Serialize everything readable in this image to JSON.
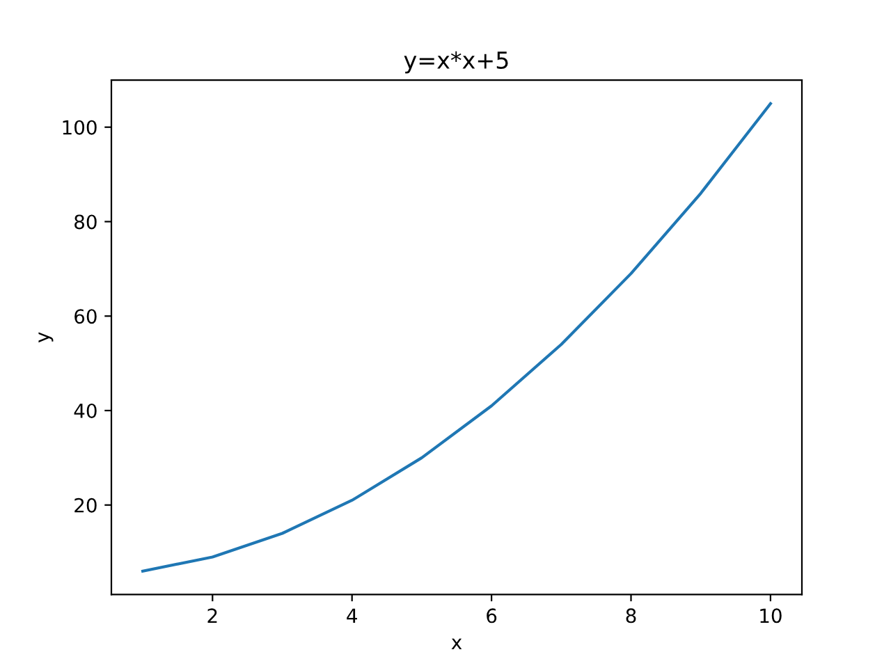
{
  "chart_data": {
    "type": "line",
    "title": "y=x*x+5",
    "xlabel": "x",
    "ylabel": "y",
    "x": [
      1,
      2,
      3,
      4,
      5,
      6,
      7,
      8,
      9,
      10
    ],
    "series": [
      {
        "color": "#1f77b4",
        "values": [
          6,
          9,
          14,
          21,
          30,
          41,
          54,
          69,
          86,
          105
        ]
      }
    ],
    "xlim": [
      0.55,
      10.45
    ],
    "ylim": [
      1.05,
      109.95
    ],
    "xticks": [
      2,
      4,
      6,
      8,
      10
    ],
    "yticks": [
      20,
      40,
      60,
      80,
      100
    ],
    "grid": false,
    "marker": "none",
    "line_style": "solid"
  }
}
